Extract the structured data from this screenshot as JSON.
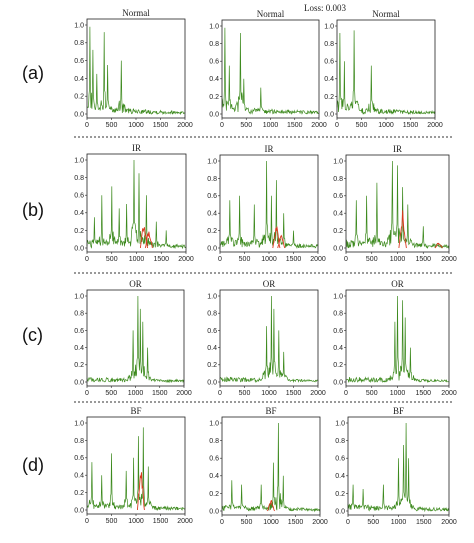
{
  "figure": {
    "loss_text": "Loss: 0.003",
    "rows": [
      {
        "label": "(a)",
        "title": "Normal"
      },
      {
        "label": "(b)",
        "title": "IR"
      },
      {
        "label": "(c)",
        "title": "OR"
      },
      {
        "label": "(d)",
        "title": "BF"
      }
    ]
  },
  "colors": {
    "signal": "#3d8a1e",
    "reconstruction": "#d9381e",
    "background": "#ffffff"
  },
  "chart_data": [
    {
      "panel": "a1",
      "type": "line",
      "title": "Normal",
      "xlim": [
        0,
        2000
      ],
      "ylim": [
        0,
        1.0
      ],
      "xticks": [
        "0",
        "500",
        "1000",
        "1500",
        "2000"
      ],
      "yticks": [
        "0.0",
        "0.2",
        "0.4",
        "0.6",
        "0.8",
        "1.0"
      ],
      "peaks": [
        [
          60,
          0.98
        ],
        [
          120,
          0.72
        ],
        [
          200,
          0.45
        ],
        [
          350,
          0.92
        ],
        [
          420,
          0.55
        ],
        [
          700,
          0.6
        ]
      ],
      "recon_peaks": [],
      "noise": 0.08
    },
    {
      "panel": "a2",
      "type": "line",
      "title": "Normal",
      "xlim": [
        0,
        2000
      ],
      "ylim": [
        0,
        1.0
      ],
      "xticks": [
        "0",
        "500",
        "1000",
        "1500",
        "2000"
      ],
      "yticks": [
        "0.0",
        "0.2",
        "0.4",
        "0.6",
        "0.8",
        "1.0"
      ],
      "peaks": [
        [
          60,
          0.98
        ],
        [
          150,
          0.55
        ],
        [
          380,
          0.92
        ],
        [
          450,
          0.4
        ],
        [
          800,
          0.3
        ]
      ],
      "recon_peaks": [],
      "noise": 0.08
    },
    {
      "panel": "a3",
      "type": "line",
      "title": "Normal",
      "xlim": [
        0,
        2000
      ],
      "ylim": [
        0,
        1.0
      ],
      "xticks": [
        "0",
        "500",
        "1000",
        "1500",
        "2000"
      ],
      "yticks": [
        "0.0",
        "0.2",
        "0.4",
        "0.6",
        "0.8",
        "1.0"
      ],
      "peaks": [
        [
          60,
          0.92
        ],
        [
          150,
          0.6
        ],
        [
          350,
          0.95
        ],
        [
          700,
          0.55
        ]
      ],
      "recon_peaks": [],
      "noise": 0.08
    },
    {
      "panel": "b1",
      "type": "line",
      "title": "IR",
      "xlim": [
        0,
        2000
      ],
      "ylim": [
        0,
        1.0
      ],
      "xticks": [
        "0",
        "500",
        "1000",
        "1500",
        "2000"
      ],
      "yticks": [
        "0.0",
        "0.2",
        "0.4",
        "0.6",
        "0.8",
        "1.0"
      ],
      "peaks": [
        [
          150,
          0.35
        ],
        [
          300,
          0.6
        ],
        [
          500,
          0.7
        ],
        [
          650,
          0.45
        ],
        [
          800,
          0.5
        ],
        [
          950,
          1.0
        ],
        [
          1050,
          0.85
        ],
        [
          1200,
          0.6
        ],
        [
          1400,
          0.3
        ],
        [
          1600,
          0.2
        ]
      ],
      "recon_peaks": [
        [
          1150,
          0.35
        ],
        [
          1250,
          0.25
        ]
      ],
      "noise": 0.1
    },
    {
      "panel": "b2",
      "type": "line",
      "title": "IR",
      "xlim": [
        0,
        2000
      ],
      "ylim": [
        0,
        1.0
      ],
      "xticks": [
        "0",
        "500",
        "1000",
        "1500",
        "2000"
      ],
      "yticks": [
        "0.0",
        "0.2",
        "0.4",
        "0.6",
        "0.8",
        "1.0"
      ],
      "peaks": [
        [
          200,
          0.55
        ],
        [
          400,
          0.6
        ],
        [
          700,
          0.5
        ],
        [
          950,
          1.0
        ],
        [
          1050,
          0.6
        ],
        [
          1150,
          0.78
        ],
        [
          1300,
          0.4
        ],
        [
          1500,
          0.2
        ]
      ],
      "recon_peaks": [
        [
          1150,
          0.3
        ],
        [
          1250,
          0.2
        ]
      ],
      "noise": 0.1
    },
    {
      "panel": "b3",
      "type": "line",
      "title": "IR",
      "xlim": [
        0,
        2000
      ],
      "ylim": [
        0,
        1.0
      ],
      "xticks": [
        "0",
        "500",
        "1000",
        "1500",
        "2000"
      ],
      "yticks": [
        "0.0",
        "0.2",
        "0.4",
        "0.6",
        "0.8",
        "1.0"
      ],
      "peaks": [
        [
          200,
          0.55
        ],
        [
          400,
          0.6
        ],
        [
          600,
          0.75
        ],
        [
          900,
          1.0
        ],
        [
          1000,
          0.95
        ],
        [
          1100,
          0.7
        ],
        [
          1200,
          0.5
        ],
        [
          1500,
          0.25
        ]
      ],
      "recon_peaks": [
        [
          1100,
          0.45
        ],
        [
          1800,
          0.08
        ]
      ],
      "noise": 0.1
    },
    {
      "panel": "c1",
      "type": "line",
      "title": "OR",
      "xlim": [
        0,
        2000
      ],
      "ylim": [
        0,
        1.0
      ],
      "xticks": [
        "0",
        "500",
        "1000",
        "1500",
        "2000"
      ],
      "yticks": [
        "0.0",
        "0.2",
        "0.4",
        "0.6",
        "0.8",
        "1.0"
      ],
      "peaks": [
        [
          950,
          0.6
        ],
        [
          1050,
          1.0
        ],
        [
          1100,
          0.85
        ],
        [
          1150,
          0.7
        ],
        [
          1250,
          0.4
        ]
      ],
      "recon_peaks": [],
      "noise": 0.06
    },
    {
      "panel": "c2",
      "type": "line",
      "title": "OR",
      "xlim": [
        0,
        2000
      ],
      "ylim": [
        0,
        1.0
      ],
      "xticks": [
        "0",
        "500",
        "1000",
        "1500",
        "2000"
      ],
      "yticks": [
        "0.0",
        "0.2",
        "0.4",
        "0.6",
        "0.8",
        "1.0"
      ],
      "peaks": [
        [
          950,
          0.65
        ],
        [
          1050,
          1.0
        ],
        [
          1100,
          0.85
        ],
        [
          1200,
          0.6
        ],
        [
          1300,
          0.35
        ]
      ],
      "recon_peaks": [],
      "noise": 0.06
    },
    {
      "panel": "c3",
      "type": "line",
      "title": "OR",
      "xlim": [
        0,
        2000
      ],
      "ylim": [
        0,
        1.0
      ],
      "xticks": [
        "0",
        "500",
        "1000",
        "1500",
        "2000"
      ],
      "yticks": [
        "0.0",
        "0.2",
        "0.4",
        "0.6",
        "0.8",
        "1.0"
      ],
      "peaks": [
        [
          950,
          0.7
        ],
        [
          1000,
          1.0
        ],
        [
          1100,
          0.95
        ],
        [
          1150,
          0.75
        ],
        [
          1250,
          0.4
        ]
      ],
      "recon_peaks": [],
      "noise": 0.06
    },
    {
      "panel": "d1",
      "type": "line",
      "title": "BF",
      "xlim": [
        0,
        2000
      ],
      "ylim": [
        0,
        1.0
      ],
      "xticks": [
        "0",
        "500",
        "1000",
        "1500",
        "2000"
      ],
      "yticks": [
        "0.0",
        "0.2",
        "0.4",
        "0.6",
        "0.8",
        "1.0"
      ],
      "peaks": [
        [
          100,
          0.55
        ],
        [
          300,
          0.4
        ],
        [
          500,
          0.65
        ],
        [
          800,
          0.45
        ],
        [
          950,
          0.6
        ],
        [
          1050,
          0.85
        ],
        [
          1150,
          0.95
        ],
        [
          1250,
          0.5
        ]
      ],
      "recon_peaks": [
        [
          1100,
          0.55
        ]
      ],
      "noise": 0.08
    },
    {
      "panel": "d2",
      "type": "line",
      "title": "BF",
      "xlim": [
        0,
        2000
      ],
      "ylim": [
        0,
        1.0
      ],
      "xticks": [
        "0",
        "500",
        "1000",
        "1500",
        "2000"
      ],
      "yticks": [
        "0.0",
        "0.2",
        "0.4",
        "0.6",
        "0.8",
        "1.0"
      ],
      "peaks": [
        [
          200,
          0.35
        ],
        [
          400,
          0.3
        ],
        [
          800,
          0.3
        ],
        [
          1050,
          0.55
        ],
        [
          1150,
          1.0
        ],
        [
          1250,
          0.4
        ]
      ],
      "recon_peaks": [
        [
          1000,
          0.15
        ]
      ],
      "noise": 0.07
    },
    {
      "panel": "d3",
      "type": "line",
      "title": "BF",
      "xlim": [
        0,
        2000
      ],
      "ylim": [
        0,
        1.0
      ],
      "xticks": [
        "0",
        "500",
        "1000",
        "1500",
        "2000"
      ],
      "yticks": [
        "0.0",
        "0.2",
        "0.4",
        "0.6",
        "0.8",
        "1.0"
      ],
      "peaks": [
        [
          100,
          0.3
        ],
        [
          300,
          0.25
        ],
        [
          700,
          0.3
        ],
        [
          1000,
          0.6
        ],
        [
          1100,
          0.75
        ],
        [
          1150,
          1.0
        ],
        [
          1200,
          0.6
        ]
      ],
      "recon_peaks": [],
      "noise": 0.08
    }
  ]
}
